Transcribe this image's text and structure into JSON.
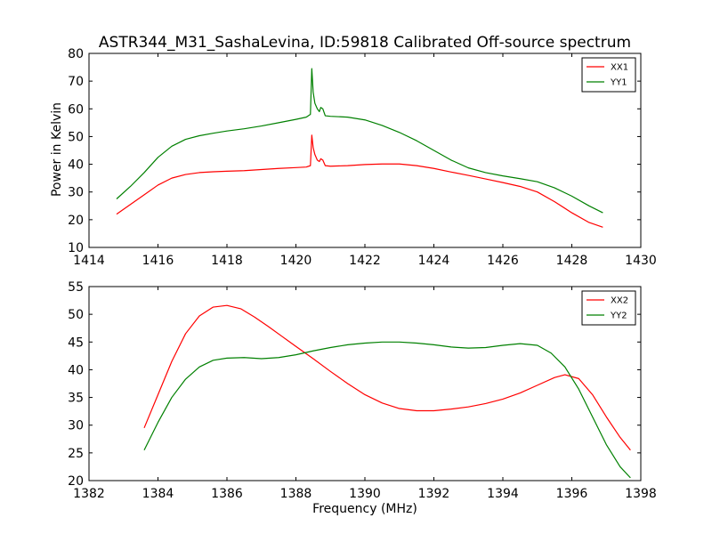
{
  "chart_data": [
    {
      "type": "line",
      "title": "ASTR344_M31_SashaLevina, ID:59818 Calibrated Off-source spectrum",
      "xlabel": "",
      "ylabel": "Power in Kelvin",
      "xlim": [
        1414,
        1430
      ],
      "ylim": [
        10,
        80
      ],
      "xticks": [
        1414,
        1416,
        1418,
        1420,
        1422,
        1424,
        1426,
        1428,
        1430
      ],
      "yticks": [
        10,
        20,
        30,
        40,
        50,
        60,
        70,
        80
      ],
      "legend_position": "top-right",
      "grid": false,
      "series": [
        {
          "name": "XX1",
          "color": "#ff0000",
          "points": [
            [
              1414.8,
              22
            ],
            [
              1415.2,
              25.5
            ],
            [
              1415.6,
              29
            ],
            [
              1416.0,
              32.5
            ],
            [
              1416.4,
              35
            ],
            [
              1416.8,
              36.3
            ],
            [
              1417.2,
              37
            ],
            [
              1417.6,
              37.3
            ],
            [
              1418.0,
              37.5
            ],
            [
              1418.5,
              37.7
            ],
            [
              1419.0,
              38.1
            ],
            [
              1419.5,
              38.5
            ],
            [
              1420.0,
              38.8
            ],
            [
              1420.3,
              39
            ],
            [
              1420.42,
              39.5
            ],
            [
              1420.46,
              50.5
            ],
            [
              1420.5,
              46
            ],
            [
              1420.55,
              43.5
            ],
            [
              1420.62,
              41.5
            ],
            [
              1420.68,
              41
            ],
            [
              1420.72,
              42
            ],
            [
              1420.78,
              41.5
            ],
            [
              1420.85,
              39.5
            ],
            [
              1421.0,
              39.3
            ],
            [
              1421.5,
              39.5
            ],
            [
              1422.0,
              39.9
            ],
            [
              1422.5,
              40.1
            ],
            [
              1423.0,
              40.1
            ],
            [
              1423.5,
              39.5
            ],
            [
              1424.0,
              38.5
            ],
            [
              1424.5,
              37.2
            ],
            [
              1425.0,
              36
            ],
            [
              1425.5,
              34.7
            ],
            [
              1426.0,
              33.4
            ],
            [
              1426.5,
              32
            ],
            [
              1427.0,
              30
            ],
            [
              1427.5,
              26.5
            ],
            [
              1428.0,
              22.5
            ],
            [
              1428.5,
              19
            ],
            [
              1428.9,
              17.3
            ]
          ]
        },
        {
          "name": "YY1",
          "color": "#008000",
          "points": [
            [
              1414.8,
              27.5
            ],
            [
              1415.2,
              32
            ],
            [
              1415.6,
              37
            ],
            [
              1416.0,
              42.5
            ],
            [
              1416.4,
              46.5
            ],
            [
              1416.8,
              49
            ],
            [
              1417.2,
              50.3
            ],
            [
              1417.6,
              51.2
            ],
            [
              1418.0,
              52
            ],
            [
              1418.5,
              52.8
            ],
            [
              1419.0,
              53.8
            ],
            [
              1419.5,
              55
            ],
            [
              1420.0,
              56.2
            ],
            [
              1420.3,
              57
            ],
            [
              1420.42,
              58
            ],
            [
              1420.46,
              74.5
            ],
            [
              1420.5,
              66
            ],
            [
              1420.55,
              62
            ],
            [
              1420.62,
              60
            ],
            [
              1420.68,
              59
            ],
            [
              1420.72,
              60.5
            ],
            [
              1420.78,
              60
            ],
            [
              1420.85,
              57.5
            ],
            [
              1421.0,
              57.3
            ],
            [
              1421.5,
              57
            ],
            [
              1422.0,
              56
            ],
            [
              1422.5,
              54
            ],
            [
              1423.0,
              51.5
            ],
            [
              1423.5,
              48.5
            ],
            [
              1424.0,
              45
            ],
            [
              1424.5,
              41.5
            ],
            [
              1425.0,
              38.7
            ],
            [
              1425.5,
              37
            ],
            [
              1426.0,
              35.8
            ],
            [
              1426.5,
              34.8
            ],
            [
              1427.0,
              33.7
            ],
            [
              1427.5,
              31.5
            ],
            [
              1428.0,
              28.5
            ],
            [
              1428.5,
              25
            ],
            [
              1428.9,
              22.5
            ]
          ]
        }
      ]
    },
    {
      "type": "line",
      "title": "",
      "xlabel": "Frequency (MHz)",
      "ylabel": "",
      "xlim": [
        1382,
        1398
      ],
      "ylim": [
        20,
        55
      ],
      "xticks": [
        1382,
        1384,
        1386,
        1388,
        1390,
        1392,
        1394,
        1396,
        1398
      ],
      "yticks": [
        20,
        25,
        30,
        35,
        40,
        45,
        50,
        55
      ],
      "legend_position": "top-right",
      "grid": false,
      "series": [
        {
          "name": "XX2",
          "color": "#ff0000",
          "points": [
            [
              1383.6,
              29.5
            ],
            [
              1384.0,
              35.5
            ],
            [
              1384.4,
              41.5
            ],
            [
              1384.8,
              46.5
            ],
            [
              1385.2,
              49.7
            ],
            [
              1385.6,
              51.3
            ],
            [
              1386.0,
              51.6
            ],
            [
              1386.4,
              51
            ],
            [
              1386.8,
              49.5
            ],
            [
              1387.2,
              47.8
            ],
            [
              1387.6,
              46
            ],
            [
              1388.0,
              44.2
            ],
            [
              1388.5,
              42
            ],
            [
              1389.0,
              39.7
            ],
            [
              1389.5,
              37.5
            ],
            [
              1390.0,
              35.5
            ],
            [
              1390.5,
              34
            ],
            [
              1391.0,
              33
            ],
            [
              1391.5,
              32.6
            ],
            [
              1392.0,
              32.6
            ],
            [
              1392.5,
              32.9
            ],
            [
              1393.0,
              33.3
            ],
            [
              1393.5,
              33.9
            ],
            [
              1394.0,
              34.7
            ],
            [
              1394.5,
              35.8
            ],
            [
              1395.0,
              37.2
            ],
            [
              1395.5,
              38.6
            ],
            [
              1395.8,
              39.1
            ],
            [
              1396.2,
              38.4
            ],
            [
              1396.6,
              35.5
            ],
            [
              1397.0,
              31.5
            ],
            [
              1397.4,
              27.8
            ],
            [
              1397.7,
              25.5
            ]
          ]
        },
        {
          "name": "YY2",
          "color": "#008000",
          "points": [
            [
              1383.6,
              25.5
            ],
            [
              1384.0,
              30.5
            ],
            [
              1384.4,
              35
            ],
            [
              1384.8,
              38.3
            ],
            [
              1385.2,
              40.5
            ],
            [
              1385.6,
              41.7
            ],
            [
              1386.0,
              42.1
            ],
            [
              1386.5,
              42.2
            ],
            [
              1387.0,
              42
            ],
            [
              1387.5,
              42.2
            ],
            [
              1388.0,
              42.7
            ],
            [
              1388.5,
              43.4
            ],
            [
              1389.0,
              44
            ],
            [
              1389.5,
              44.5
            ],
            [
              1390.0,
              44.8
            ],
            [
              1390.5,
              45
            ],
            [
              1391.0,
              45
            ],
            [
              1391.5,
              44.8
            ],
            [
              1392.0,
              44.5
            ],
            [
              1392.5,
              44.1
            ],
            [
              1393.0,
              43.9
            ],
            [
              1393.5,
              44
            ],
            [
              1394.0,
              44.4
            ],
            [
              1394.5,
              44.7
            ],
            [
              1395.0,
              44.4
            ],
            [
              1395.4,
              43
            ],
            [
              1395.8,
              40.5
            ],
            [
              1396.2,
              36.5
            ],
            [
              1396.6,
              31.5
            ],
            [
              1397.0,
              26.5
            ],
            [
              1397.4,
              22.5
            ],
            [
              1397.7,
              20.5
            ]
          ]
        }
      ]
    }
  ]
}
